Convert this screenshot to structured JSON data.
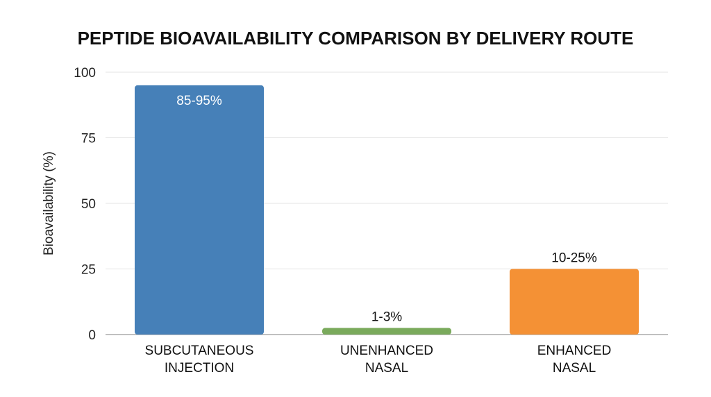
{
  "chart_data": {
    "type": "bar",
    "title": "PEPTIDE BIOAVAILABILITY COMPARISON BY DELIVERY ROUTE",
    "ylabel": "Bioavailability (%)",
    "xlabel": "",
    "ylim": [
      0,
      100
    ],
    "yticks": [
      0,
      25,
      50,
      75,
      100
    ],
    "grid": true,
    "categories": [
      [
        "SUBCUTANEOUS",
        "INJECTION"
      ],
      [
        "UNENHANCED",
        "NASAL"
      ],
      [
        "ENHANCED",
        "NASAL"
      ]
    ],
    "values": [
      95,
      2.5,
      25
    ],
    "data_labels": [
      "85-95%",
      "1-3%",
      "10-25%"
    ],
    "label_position": [
      "inside",
      "above",
      "above"
    ],
    "colors": [
      "#4680b8",
      "#7aaa5c",
      "#f49135"
    ],
    "label_colors": [
      "#ffffff",
      "#111111",
      "#111111"
    ]
  }
}
